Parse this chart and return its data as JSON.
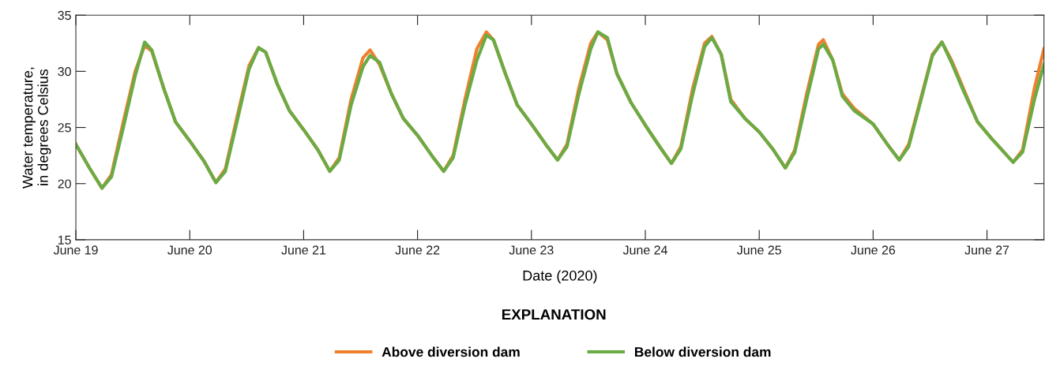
{
  "chart_data": {
    "type": "line",
    "xlabel": "Date (2020)",
    "ylabel": "Water temperature,\nin degrees Celsius",
    "legend_title": "EXPLANATION",
    "legend": "bottom",
    "grid": false,
    "marker": "none",
    "line_style": "solid",
    "xlim": [
      "2020-06-19T00:00",
      "2020-06-27T12:00"
    ],
    "xticks": [
      {
        "value": "2020-06-19",
        "label": "June 19"
      },
      {
        "value": "2020-06-20",
        "label": "June 20"
      },
      {
        "value": "2020-06-21",
        "label": "June 21"
      },
      {
        "value": "2020-06-22",
        "label": "June 22"
      },
      {
        "value": "2020-06-23",
        "label": "June 23"
      },
      {
        "value": "2020-06-24",
        "label": "June 24"
      },
      {
        "value": "2020-06-25",
        "label": "June 25"
      },
      {
        "value": "2020-06-26",
        "label": "June 26"
      },
      {
        "value": "2020-06-27",
        "label": "June 27"
      }
    ],
    "ylim": [
      15,
      35
    ],
    "yticks": [
      15,
      20,
      25,
      30,
      35
    ],
    "x": [
      "2020-06-19T00:00",
      "2020-06-19T03:00",
      "2020-06-19T05:30",
      "2020-06-19T07:30",
      "2020-06-19T10:00",
      "2020-06-19T12:30",
      "2020-06-19T14:30",
      "2020-06-19T16:00",
      "2020-06-19T18:30",
      "2020-06-19T21:00",
      "2020-06-20T00:00",
      "2020-06-20T03:00",
      "2020-06-20T05:30",
      "2020-06-20T07:30",
      "2020-06-20T10:00",
      "2020-06-20T12:30",
      "2020-06-20T14:30",
      "2020-06-20T16:00",
      "2020-06-20T18:30",
      "2020-06-20T21:00",
      "2020-06-21T00:00",
      "2020-06-21T03:00",
      "2020-06-21T05:30",
      "2020-06-21T07:30",
      "2020-06-21T10:00",
      "2020-06-21T12:30",
      "2020-06-21T14:00",
      "2020-06-21T16:00",
      "2020-06-21T18:30",
      "2020-06-21T21:00",
      "2020-06-22T00:00",
      "2020-06-22T03:00",
      "2020-06-22T05:30",
      "2020-06-22T07:30",
      "2020-06-22T10:00",
      "2020-06-22T12:30",
      "2020-06-22T14:30",
      "2020-06-22T16:00",
      "2020-06-22T18:30",
      "2020-06-22T21:00",
      "2020-06-23T00:00",
      "2020-06-23T03:00",
      "2020-06-23T05:30",
      "2020-06-23T07:30",
      "2020-06-23T10:00",
      "2020-06-23T12:30",
      "2020-06-23T14:00",
      "2020-06-23T16:00",
      "2020-06-23T18:00",
      "2020-06-23T21:00",
      "2020-06-24T00:00",
      "2020-06-24T03:00",
      "2020-06-24T05:30",
      "2020-06-24T07:30",
      "2020-06-24T10:00",
      "2020-06-24T12:30",
      "2020-06-24T14:00",
      "2020-06-24T16:00",
      "2020-06-24T18:00",
      "2020-06-24T21:00",
      "2020-06-25T00:00",
      "2020-06-25T03:00",
      "2020-06-25T05:30",
      "2020-06-25T07:30",
      "2020-06-25T10:00",
      "2020-06-25T12:30",
      "2020-06-25T13:30",
      "2020-06-25T15:30",
      "2020-06-25T17:30",
      "2020-06-25T20:00",
      "2020-06-26T00:00",
      "2020-06-26T03:00",
      "2020-06-26T05:30",
      "2020-06-26T07:30",
      "2020-06-26T10:00",
      "2020-06-26T12:30",
      "2020-06-26T14:30",
      "2020-06-26T16:30",
      "2020-06-26T19:00",
      "2020-06-26T22:00",
      "2020-06-27T01:00",
      "2020-06-27T05:30",
      "2020-06-27T07:30",
      "2020-06-27T10:00",
      "2020-06-27T12:00"
    ],
    "series": [
      {
        "name": "Above diversion dam",
        "color": "#f07f2e",
        "values": [
          23.5,
          21.3,
          19.6,
          20.8,
          25.5,
          30.0,
          32.3,
          31.8,
          28.5,
          25.5,
          23.8,
          22.0,
          20.1,
          21.3,
          26.0,
          30.5,
          32.1,
          31.7,
          28.8,
          26.5,
          24.8,
          23.0,
          21.1,
          22.3,
          27.5,
          31.2,
          31.9,
          30.6,
          28.0,
          25.8,
          24.3,
          22.5,
          21.1,
          22.5,
          27.5,
          32.0,
          33.5,
          32.8,
          29.8,
          27.0,
          25.3,
          23.5,
          22.1,
          23.5,
          28.5,
          32.5,
          33.5,
          32.8,
          29.8,
          27.2,
          25.2,
          23.3,
          21.8,
          23.3,
          28.5,
          32.5,
          33.1,
          31.5,
          27.5,
          25.8,
          24.6,
          23.0,
          21.4,
          23.0,
          28.0,
          32.4,
          32.8,
          31.0,
          28.0,
          26.7,
          25.3,
          23.5,
          22.1,
          23.5,
          27.5,
          31.5,
          32.6,
          31.0,
          28.5,
          25.5,
          24.0,
          21.9,
          23.0,
          28.5,
          32.0
        ]
      },
      {
        "name": "Below diversion dam",
        "color": "#6aab45",
        "values": [
          23.5,
          21.3,
          19.6,
          20.6,
          25.0,
          29.6,
          32.6,
          31.9,
          28.5,
          25.5,
          23.8,
          22.0,
          20.1,
          21.1,
          25.6,
          30.2,
          32.1,
          31.7,
          28.8,
          26.5,
          24.8,
          23.0,
          21.1,
          22.1,
          27.0,
          30.4,
          31.4,
          30.8,
          28.0,
          25.8,
          24.3,
          22.5,
          21.1,
          22.3,
          27.0,
          31.0,
          33.2,
          32.8,
          29.8,
          27.0,
          25.3,
          23.5,
          22.1,
          23.3,
          28.0,
          32.0,
          33.5,
          33.0,
          29.8,
          27.2,
          25.2,
          23.3,
          21.8,
          23.1,
          28.0,
          32.2,
          33.0,
          31.5,
          27.3,
          25.8,
          24.6,
          23.0,
          21.4,
          22.8,
          27.5,
          32.0,
          32.4,
          31.0,
          27.8,
          26.5,
          25.3,
          23.5,
          22.1,
          23.3,
          27.3,
          31.4,
          32.6,
          30.8,
          28.3,
          25.5,
          24.0,
          21.9,
          22.8,
          27.5,
          30.6
        ]
      }
    ]
  }
}
